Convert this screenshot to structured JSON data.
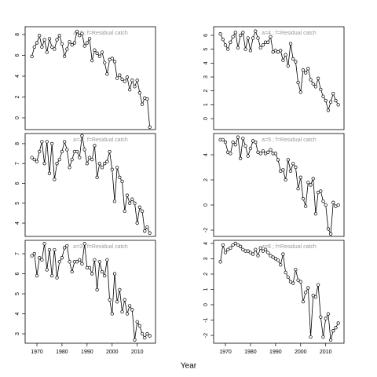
{
  "xlabel": "Year",
  "chart_data": [
    {
      "type": "line",
      "title": "a=1  ;  f=Residual catch",
      "x": [
        1968,
        1969,
        1970,
        1971,
        1972,
        1973,
        1974,
        1975,
        1976,
        1977,
        1978,
        1979,
        1980,
        1981,
        1982,
        1983,
        1984,
        1985,
        1986,
        1987,
        1988,
        1989,
        1990,
        1991,
        1992,
        1993,
        1994,
        1995,
        1996,
        1997,
        1998,
        1999,
        2000,
        2001,
        2002,
        2003,
        2004,
        2005,
        2006,
        2007,
        2008,
        2009,
        2010,
        2011,
        2012,
        2013,
        2014,
        2015
      ],
      "values": [
        5.9,
        6.8,
        7.2,
        7.9,
        6.8,
        7.5,
        6.3,
        7.6,
        6.8,
        6.6,
        7.5,
        7.9,
        7.1,
        5.9,
        6.6,
        7.3,
        7.0,
        7.2,
        8.3,
        7.9,
        8.1,
        6.9,
        7.2,
        7.6,
        5.5,
        6.5,
        6.2,
        5.9,
        6.3,
        5.3,
        4.2,
        5.6,
        5.7,
        5.4,
        3.8,
        4.1,
        3.7,
        3.5,
        3.9,
        2.7,
        3.6,
        3.0,
        3.6,
        2.4,
        1.3,
        1.9,
        1.8,
        -0.9
      ],
      "xlim": [
        1965.3,
        2017.3
      ],
      "ylim": [
        -1.13,
        8.75
      ],
      "yticks": [
        0,
        2,
        4,
        6,
        8
      ]
    },
    {
      "type": "line",
      "title": "a=4  ;  f=Residual catch",
      "x": [
        1968,
        1969,
        1970,
        1971,
        1972,
        1973,
        1974,
        1975,
        1976,
        1977,
        1978,
        1979,
        1980,
        1981,
        1982,
        1983,
        1984,
        1985,
        1986,
        1987,
        1988,
        1989,
        1990,
        1991,
        1992,
        1993,
        1994,
        1995,
        1996,
        1997,
        1998,
        1999,
        2000,
        2001,
        2002,
        2003,
        2004,
        2005,
        2006,
        2007,
        2008,
        2009,
        2010,
        2011,
        2012,
        2013,
        2014,
        2015
      ],
      "values": [
        6.1,
        5.7,
        5.3,
        5.0,
        5.5,
        5.9,
        6.2,
        5.1,
        6.0,
        6.2,
        5.0,
        5.8,
        4.9,
        5.8,
        6.3,
        5.8,
        5.1,
        5.3,
        5.5,
        5.5,
        5.9,
        4.8,
        4.9,
        4.8,
        4.9,
        4.2,
        4.6,
        3.8,
        5.4,
        4.3,
        4.1,
        2.6,
        1.9,
        3.5,
        3.3,
        3.6,
        2.8,
        2.5,
        2.3,
        2.9,
        2.1,
        1.6,
        1.3,
        0.6,
        1.2,
        1.8,
        1.3,
        1.0
      ],
      "xlim": [
        1965.3,
        2017.3
      ],
      "ylim": [
        -0.79,
        6.62
      ],
      "yticks": [
        0,
        1,
        2,
        3,
        4,
        5,
        6
      ]
    },
    {
      "type": "line",
      "title": "a=2  ;  f=Residual catch",
      "x": [
        1968,
        1969,
        1970,
        1971,
        1972,
        1973,
        1974,
        1975,
        1976,
        1977,
        1978,
        1979,
        1980,
        1981,
        1982,
        1983,
        1984,
        1985,
        1986,
        1987,
        1988,
        1989,
        1990,
        1991,
        1992,
        1993,
        1994,
        1995,
        1996,
        1997,
        1998,
        1999,
        2000,
        2001,
        2002,
        2003,
        2004,
        2005,
        2006,
        2007,
        2008,
        2009,
        2010,
        2011,
        2012,
        2013,
        2014,
        2015
      ],
      "values": [
        7.3,
        7.2,
        7.1,
        7.6,
        8.1,
        7.0,
        8.1,
        6.5,
        8.0,
        6.2,
        7.0,
        7.2,
        7.6,
        8.1,
        7.7,
        6.8,
        7.2,
        7.6,
        7.6,
        7.3,
        8.4,
        7.7,
        7.0,
        7.3,
        7.2,
        7.9,
        6.3,
        7.0,
        6.8,
        7.0,
        7.1,
        7.6,
        6.7,
        5.1,
        6.8,
        6.3,
        6.1,
        4.6,
        5.4,
        5.0,
        5.2,
        5.0,
        4.0,
        4.8,
        4.6,
        3.6,
        3.8,
        3.5
      ],
      "xlim": [
        1965.3,
        2017.3
      ],
      "ylim": [
        3.33,
        8.51
      ],
      "yticks": [
        4,
        5,
        6,
        7,
        8
      ]
    },
    {
      "type": "line",
      "title": "a=5  ;  f=Residual catch",
      "x": [
        1968,
        1969,
        1970,
        1971,
        1972,
        1973,
        1974,
        1975,
        1976,
        1977,
        1978,
        1979,
        1980,
        1981,
        1982,
        1983,
        1984,
        1985,
        1986,
        1987,
        1988,
        1989,
        1990,
        1991,
        1992,
        1993,
        1994,
        1995,
        1996,
        1997,
        1998,
        1999,
        2000,
        2001,
        2002,
        2003,
        2004,
        2005,
        2006,
        2007,
        2008,
        2009,
        2010,
        2011,
        2012,
        2013,
        2014,
        2015
      ],
      "values": [
        5.2,
        5.2,
        5.0,
        4.2,
        4.1,
        5.0,
        4.8,
        5.4,
        3.7,
        5.3,
        4.7,
        3.9,
        4.5,
        5.1,
        5.0,
        4.2,
        4.1,
        4.3,
        4.1,
        4.2,
        4.4,
        4.1,
        4.1,
        3.6,
        2.7,
        2.8,
        2.0,
        3.6,
        2.7,
        3.3,
        3.0,
        1.3,
        2.2,
        0.5,
        -0.1,
        1.8,
        1.6,
        2.1,
        -0.7,
        1.0,
        1.1,
        0.3,
        0.0,
        -1.9,
        -2.3,
        0.2,
        -0.1,
        0.0
      ],
      "xlim": [
        1965.3,
        2017.3
      ],
      "ylim": [
        -2.5,
        5.69
      ],
      "yticks": [
        -2,
        0,
        2,
        4
      ]
    },
    {
      "type": "line",
      "title": "a=3  ;  f=Residual catch",
      "x": [
        1968,
        1969,
        1970,
        1971,
        1972,
        1973,
        1974,
        1975,
        1976,
        1977,
        1978,
        1979,
        1980,
        1981,
        1982,
        1983,
        1984,
        1985,
        1986,
        1987,
        1988,
        1989,
        1990,
        1991,
        1992,
        1993,
        1994,
        1995,
        1996,
        1997,
        1998,
        1999,
        2000,
        2001,
        2002,
        2003,
        2004,
        2005,
        2006,
        2007,
        2008,
        2009,
        2010,
        2011,
        2012,
        2013,
        2014,
        2015
      ],
      "values": [
        6.9,
        7.0,
        5.9,
        6.8,
        6.7,
        7.5,
        6.2,
        7.2,
        5.9,
        7.2,
        5.8,
        6.6,
        6.8,
        7.3,
        7.4,
        6.6,
        6.1,
        6.6,
        6.6,
        6.7,
        6.5,
        7.5,
        6.3,
        6.3,
        6.0,
        6.7,
        5.2,
        6.6,
        6.1,
        5.9,
        6.7,
        4.7,
        4.0,
        6.0,
        4.6,
        5.2,
        4.1,
        4.7,
        4.0,
        4.4,
        4.2,
        2.7,
        3.6,
        3.4,
        3.0,
        2.8,
        3.0,
        2.9
      ],
      "xlim": [
        1965.3,
        2017.3
      ],
      "ylim": [
        2.53,
        7.67
      ],
      "yticks": [
        3,
        4,
        5,
        6,
        7
      ],
      "xticks": [
        1970,
        1980,
        1990,
        2000,
        2010
      ]
    },
    {
      "type": "line",
      "title": "a=6  ;  f=Residual catch",
      "x": [
        1968,
        1969,
        1970,
        1971,
        1972,
        1973,
        1974,
        1975,
        1976,
        1977,
        1978,
        1979,
        1980,
        1981,
        1982,
        1983,
        1984,
        1985,
        1986,
        1987,
        1988,
        1989,
        1990,
        1991,
        1992,
        1993,
        1994,
        1995,
        1996,
        1997,
        1998,
        1999,
        2000,
        2001,
        2002,
        2003,
        2004,
        2005,
        2006,
        2007,
        2008,
        2009,
        2010,
        2011,
        2012,
        2013,
        2014,
        2015
      ],
      "values": [
        2.8,
        3.9,
        3.4,
        3.6,
        3.7,
        3.9,
        4.0,
        3.9,
        3.8,
        3.6,
        3.5,
        3.5,
        3.4,
        3.3,
        3.6,
        3.2,
        3.7,
        3.5,
        3.6,
        3.4,
        3.2,
        3.1,
        3.0,
        2.9,
        2.6,
        3.3,
        2.1,
        1.8,
        1.5,
        1.4,
        2.3,
        1.6,
        1.5,
        0.2,
        0.8,
        1.1,
        -2.1,
        0.6,
        0.5,
        1.3,
        -0.8,
        -2.1,
        -0.9,
        -0.6,
        -2.3,
        -1.7,
        -1.5,
        -1.2
      ],
      "xlim": [
        1965.3,
        2017.3
      ],
      "ylim": [
        -2.51,
        4.2
      ],
      "yticks": [
        -2,
        -1,
        0,
        1,
        2,
        3,
        4
      ],
      "xticks": [
        1970,
        1980,
        1990,
        2000,
        2010
      ]
    }
  ]
}
